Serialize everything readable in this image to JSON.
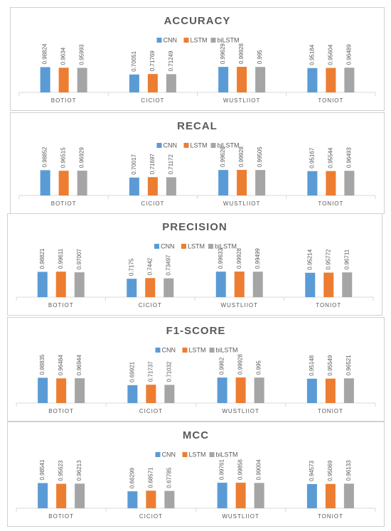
{
  "chart_data": [
    {
      "type": "bar",
      "title": "ACCURACY",
      "categories": [
        "BOTIOT",
        "CICIOT",
        "WUSTLIIOT",
        "TONIOT"
      ],
      "series": [
        {
          "name": "CNN",
          "color": "#5b9bd5",
          "values": [
            0.98824,
            0.70051,
            0.99629,
            0.95184
          ]
        },
        {
          "name": "LSTM",
          "color": "#ed7d31",
          "values": [
            0.9634,
            0.71769,
            0.99928,
            0.95604
          ]
        },
        {
          "name": "biLSTM",
          "color": "#a5a5a5",
          "values": [
            0.95993,
            0.71249,
            0.995,
            0.96489
          ]
        }
      ]
    },
    {
      "type": "bar",
      "title": "RECAL",
      "categories": [
        "BOTIOT",
        "CICIOT",
        "WUSTLIIOT",
        "TONIOT"
      ],
      "series": [
        {
          "name": "CNN",
          "color": "#5b9bd5",
          "values": [
            0.98852,
            0.70017,
            0.99628,
            0.95167
          ]
        },
        {
          "name": "LSTM",
          "color": "#ed7d31",
          "values": [
            0.96515,
            0.71697,
            0.99928,
            0.95544
          ]
        },
        {
          "name": "biLSTM",
          "color": "#a5a5a5",
          "values": [
            0.96929,
            0.71172,
            0.99505,
            0.96493
          ]
        }
      ]
    },
    {
      "type": "bar",
      "title": "PRECISION",
      "categories": [
        "BOTIOT",
        "CICIOT",
        "WUSTLIIOT",
        "TONIOT"
      ],
      "series": [
        {
          "name": "CNN",
          "color": "#5b9bd5",
          "values": [
            0.98821,
            0.7175,
            0.99633,
            0.95214
          ]
        },
        {
          "name": "LSTM",
          "color": "#ed7d31",
          "values": [
            0.99611,
            0.7442,
            0.99928,
            0.95772
          ]
        },
        {
          "name": "biLSTM",
          "color": "#a5a5a5",
          "values": [
            0.97007,
            0.73497,
            0.99499,
            0.96711
          ]
        }
      ]
    },
    {
      "type": "bar",
      "title": "F1-SCORE",
      "categories": [
        "BOTIOT",
        "CICIOT",
        "WUSTLIIOT",
        "TONIOT"
      ],
      "series": [
        {
          "name": "CNN",
          "color": "#5b9bd5",
          "values": [
            0.98835,
            0.69921,
            0.9962,
            0.95148
          ]
        },
        {
          "name": "LSTM",
          "color": "#ed7d31",
          "values": [
            0.96484,
            0.71737,
            0.99928,
            0.95549
          ]
        },
        {
          "name": "biLSTM",
          "color": "#a5a5a5",
          "values": [
            0.96944,
            0.71032,
            0.995,
            0.96521
          ]
        }
      ]
    },
    {
      "type": "bar",
      "title": "MCC",
      "categories": [
        "BOTIOT",
        "CICIOT",
        "WUSTLIIOT",
        "TONIOT"
      ],
      "series": [
        {
          "name": "CNN",
          "color": "#5b9bd5",
          "values": [
            0.98541,
            0.66299,
            0.99761,
            0.94573
          ]
        },
        {
          "name": "LSTM",
          "color": "#ed7d31",
          "values": [
            0.95623,
            0.68571,
            0.99856,
            0.95069
          ]
        },
        {
          "name": "biLSTM",
          "color": "#a5a5a5",
          "values": [
            0.96213,
            0.67785,
            0.99004,
            0.96133
          ]
        }
      ]
    }
  ]
}
